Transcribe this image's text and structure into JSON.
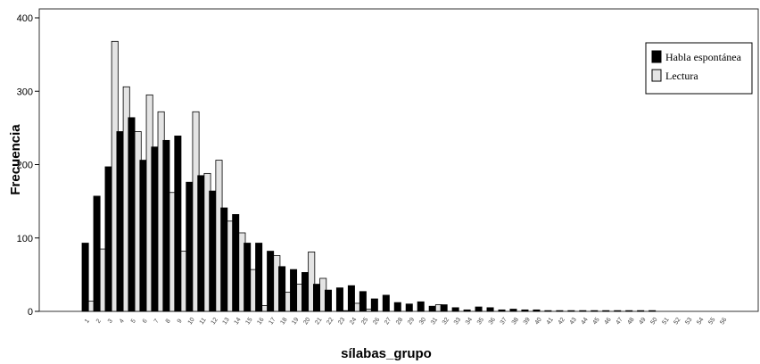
{
  "chart_data": {
    "type": "bar",
    "title": "",
    "xlabel": "sílabas_grupo",
    "ylabel": "Frecuencia",
    "ylim": [
      0,
      400
    ],
    "yticks": [
      0,
      100,
      200,
      300,
      400
    ],
    "grid": false,
    "legend_position": "top-right",
    "categories": [
      "1",
      "2",
      "3",
      "4",
      "5",
      "6",
      "7",
      "8",
      "9",
      "10",
      "11",
      "12",
      "13",
      "14",
      "15",
      "16",
      "17",
      "18",
      "19",
      "20",
      "21",
      "22",
      "23",
      "24",
      "25",
      "26",
      "27",
      "28",
      "29",
      "30",
      "31",
      "32",
      "33",
      "34",
      "35",
      "36",
      "37",
      "38",
      "39",
      "40",
      "41",
      "42",
      "43",
      "44",
      "45",
      "46",
      "47",
      "48",
      "49",
      "50",
      "51",
      "52",
      "53",
      "54",
      "55",
      "56"
    ],
    "series": [
      {
        "name": "Habla espontánea",
        "color": "#000000",
        "values": [
          93,
          157,
          197,
          245,
          264,
          206,
          224,
          233,
          239,
          176,
          185,
          164,
          141,
          132,
          93,
          93,
          82,
          61,
          57,
          53,
          37,
          29,
          32,
          35,
          27,
          17,
          22,
          12,
          10,
          13,
          7,
          9,
          5,
          2,
          6,
          5,
          2,
          3,
          2,
          2,
          1,
          1,
          1,
          1,
          1,
          1,
          1,
          1,
          1,
          1,
          0,
          0,
          0,
          0,
          0,
          0
        ]
      },
      {
        "name": "Lectura",
        "color": "#e4e4e4",
        "values": [
          14,
          85,
          368,
          306,
          245,
          295,
          272,
          162,
          82,
          272,
          188,
          206,
          123,
          107,
          57,
          8,
          76,
          26,
          37,
          81,
          45,
          0,
          1,
          11,
          3,
          0,
          0,
          0,
          0,
          0,
          9,
          0,
          0,
          0,
          0,
          0,
          0,
          0,
          0,
          0,
          0,
          0,
          0,
          0,
          0,
          0,
          0,
          0,
          0,
          0,
          0,
          0,
          0,
          0,
          0,
          0
        ]
      }
    ]
  }
}
